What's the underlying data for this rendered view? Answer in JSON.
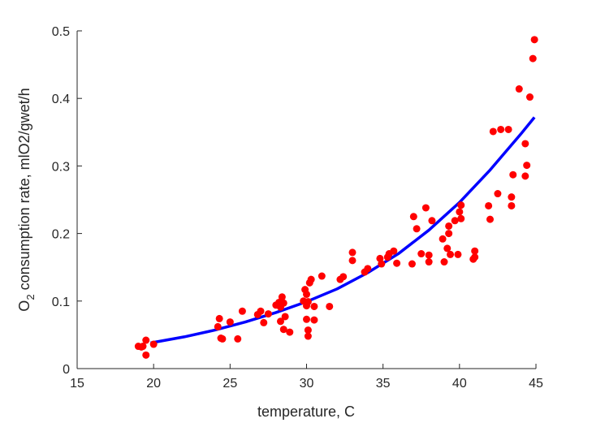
{
  "chart_data": {
    "type": "scatter",
    "xlabel": "temperature, C",
    "ylabel": "O2 consumption rate, mlO2/gwet/h",
    "ylabel_parts": {
      "prefix": "O",
      "subscript": "2",
      "rest": " consumption rate, mlO2/gwet/h"
    },
    "xlim": [
      15,
      45
    ],
    "ylim": [
      0,
      0.5
    ],
    "xticks": [
      "15",
      "20",
      "25",
      "30",
      "35",
      "40",
      "45"
    ],
    "yticks": [
      "0",
      "0.1",
      "0.2",
      "0.3",
      "0.4",
      "0.5"
    ],
    "grid": false,
    "legend": "none",
    "colors": {
      "points": "#ff0000",
      "fit": "#0000ff"
    },
    "series": [
      {
        "kind": "points",
        "x": [
          19.0,
          19.2,
          19.3,
          19.5,
          19.5,
          20.0,
          24.2,
          24.3,
          24.4,
          24.5,
          25.0,
          25.5,
          25.8,
          26.8,
          27.0,
          27.2,
          27.5,
          28.0,
          28.2,
          28.3,
          28.3,
          28.4,
          28.5,
          28.5,
          28.6,
          28.9,
          29.8,
          29.9,
          30.0,
          30.0,
          30.0,
          30.1,
          30.1,
          30.1,
          30.2,
          30.3,
          30.5,
          30.5,
          31.0,
          31.5,
          32.2,
          32.4,
          33.0,
          33.0,
          33.8,
          34.0,
          34.8,
          34.9,
          35.3,
          35.4,
          35.7,
          35.9,
          36.9,
          37.0,
          37.2,
          37.5,
          37.8,
          38.0,
          38.0,
          38.2,
          38.9,
          39.0,
          39.2,
          39.3,
          39.3,
          39.4,
          39.7,
          39.9,
          40.0,
          40.1,
          40.1,
          40.9,
          41.0,
          41.0,
          41.9,
          42.0,
          42.2,
          42.5,
          42.7,
          43.2,
          43.4,
          43.4,
          43.5,
          43.9,
          44.3,
          44.3,
          44.4,
          44.6,
          44.8,
          44.9
        ],
        "y": [
          0.033,
          0.032,
          0.033,
          0.042,
          0.02,
          0.036,
          0.062,
          0.074,
          0.045,
          0.044,
          0.069,
          0.044,
          0.085,
          0.08,
          0.085,
          0.068,
          0.081,
          0.094,
          0.098,
          0.091,
          0.07,
          0.106,
          0.097,
          0.058,
          0.077,
          0.054,
          0.1,
          0.117,
          0.11,
          0.093,
          0.073,
          0.099,
          0.057,
          0.048,
          0.127,
          0.132,
          0.072,
          0.092,
          0.137,
          0.092,
          0.132,
          0.136,
          0.172,
          0.16,
          0.143,
          0.148,
          0.163,
          0.155,
          0.165,
          0.17,
          0.174,
          0.156,
          0.155,
          0.225,
          0.207,
          0.17,
          0.238,
          0.168,
          0.158,
          0.219,
          0.192,
          0.158,
          0.178,
          0.211,
          0.2,
          0.169,
          0.219,
          0.169,
          0.232,
          0.242,
          0.222,
          0.162,
          0.165,
          0.174,
          0.241,
          0.221,
          0.351,
          0.259,
          0.354,
          0.354,
          0.241,
          0.254,
          0.287,
          0.414,
          0.333,
          0.285,
          0.301,
          0.402,
          0.459,
          0.487
        ]
      },
      {
        "kind": "fit-line",
        "x": [
          19.8,
          22,
          24,
          26,
          28,
          30,
          32,
          34,
          36,
          38,
          40,
          42,
          44,
          44.9
        ],
        "y": [
          0.038,
          0.047,
          0.057,
          0.069,
          0.083,
          0.099,
          0.118,
          0.142,
          0.17,
          0.205,
          0.246,
          0.294,
          0.347,
          0.372
        ]
      }
    ]
  }
}
